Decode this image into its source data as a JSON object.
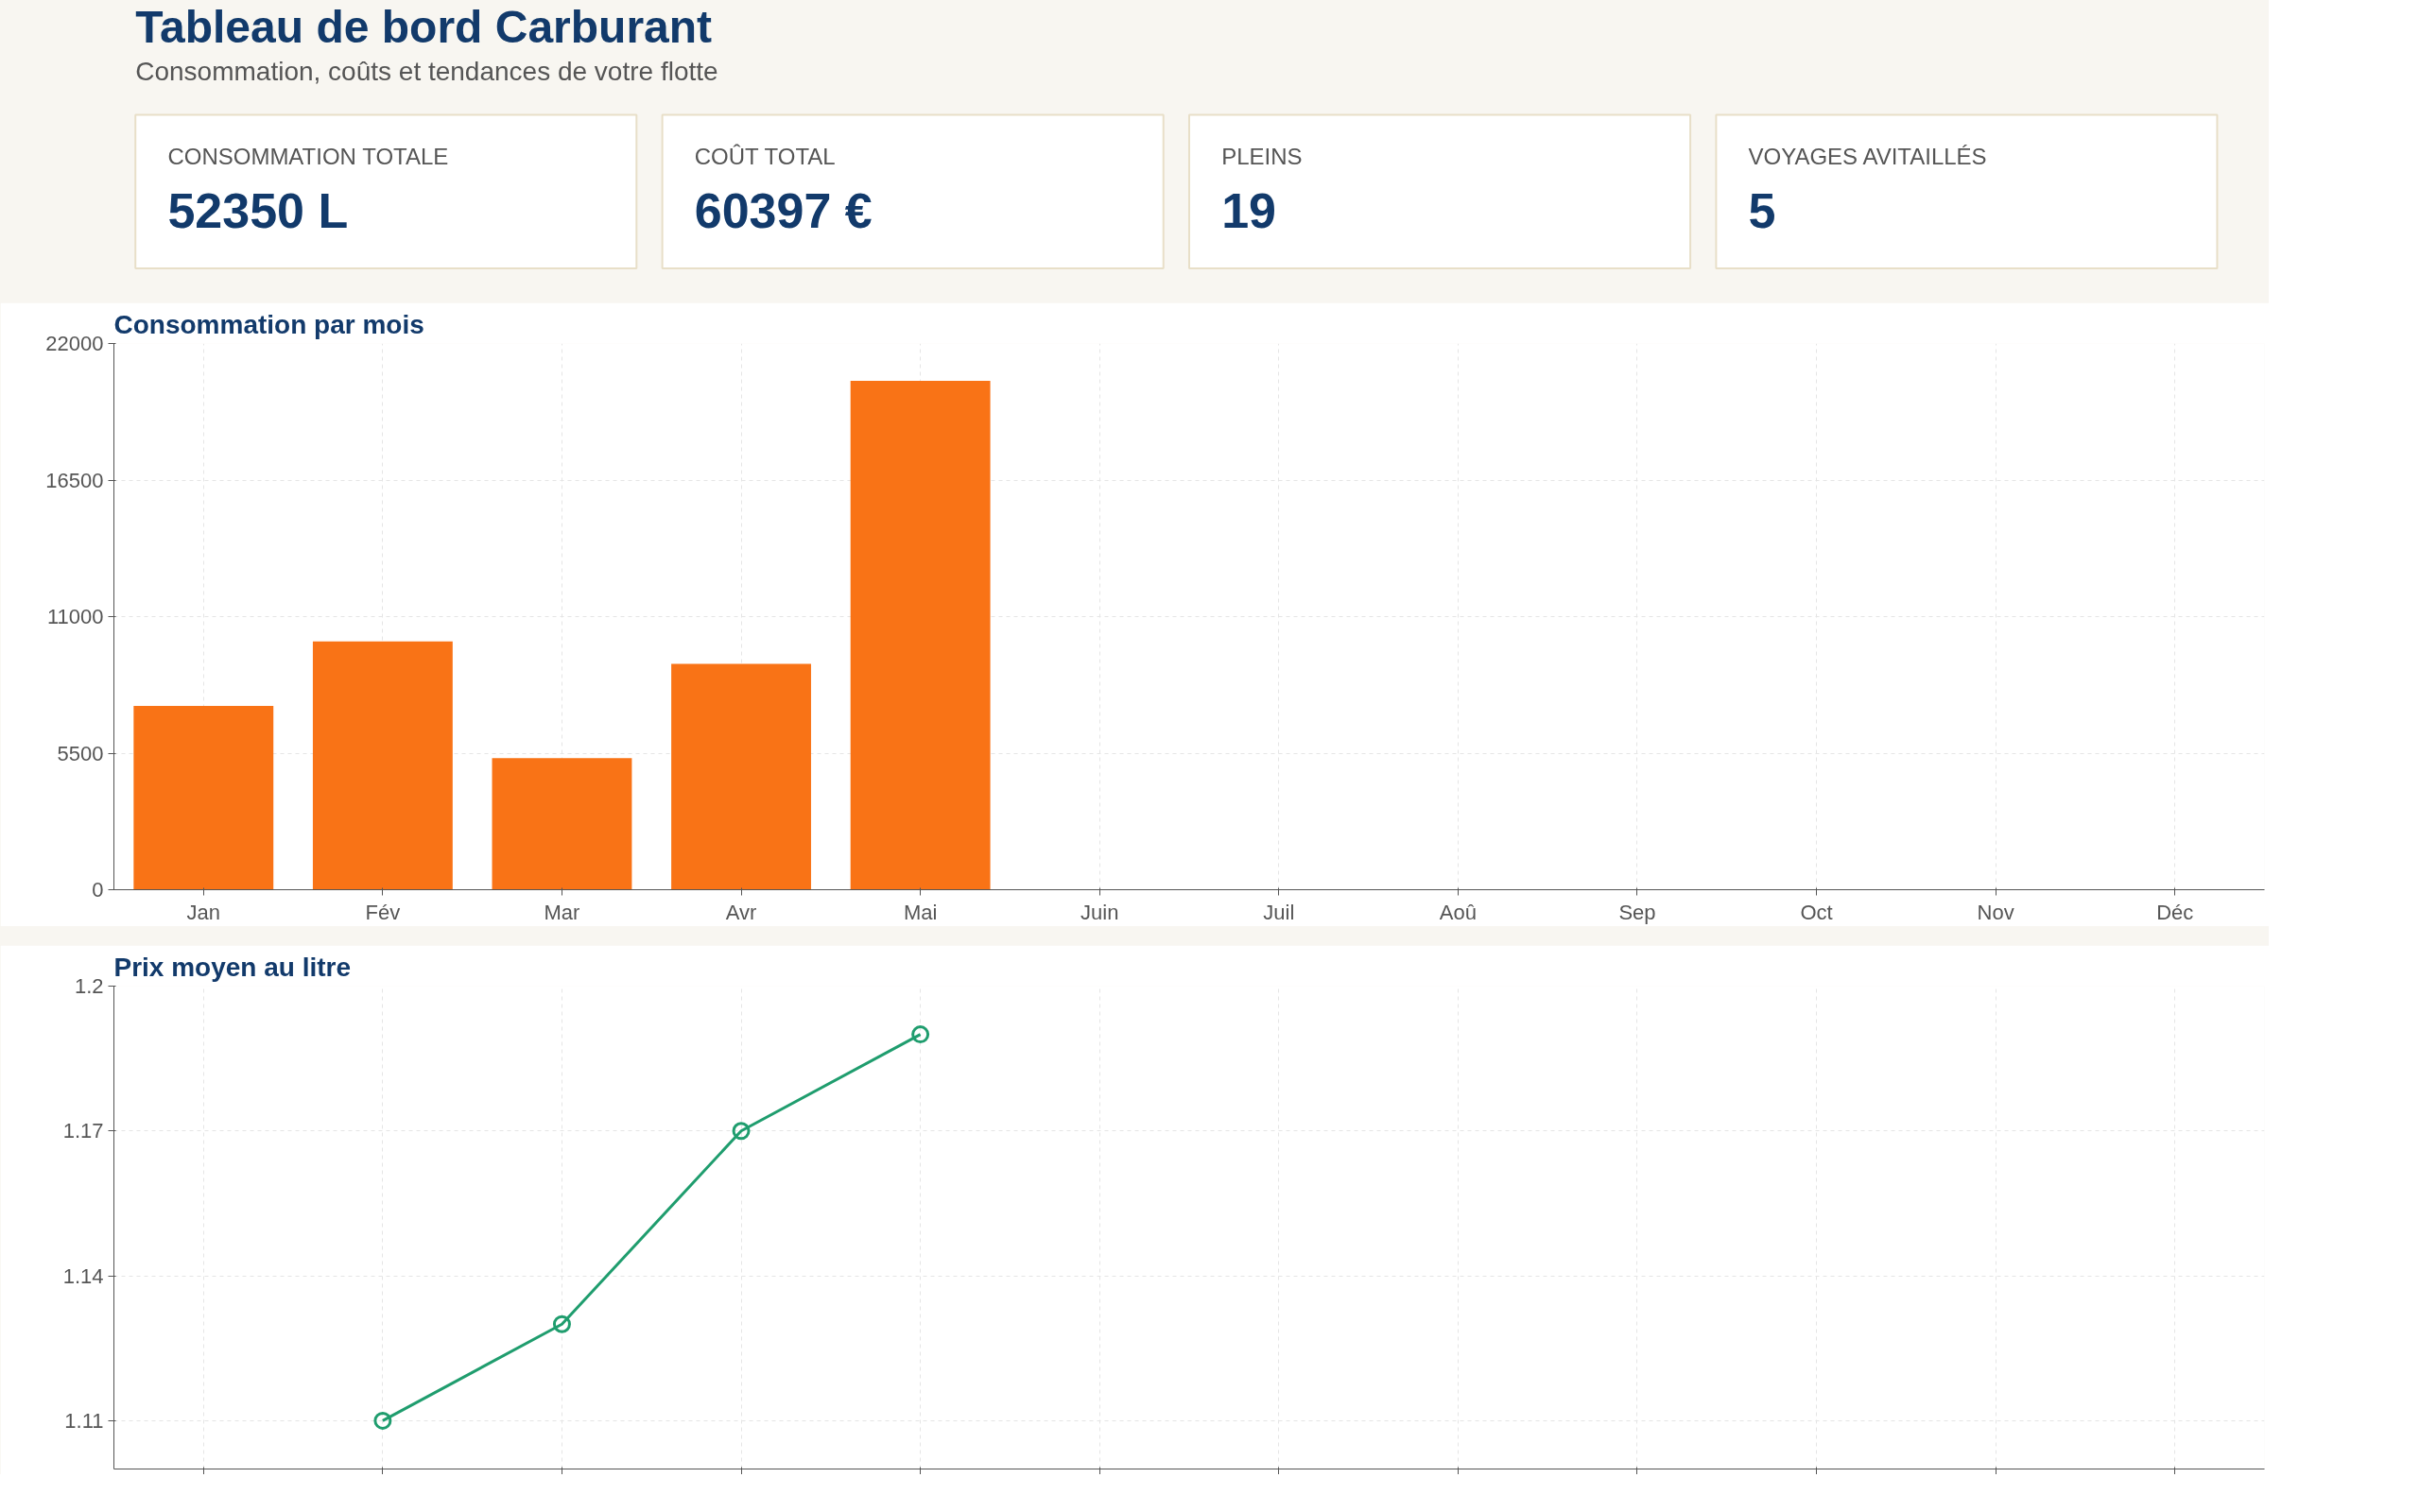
{
  "chart_data": [
    {
      "type": "other",
      "title": "Tableau de bord Carburant",
      "subtitle": "Consommation, coûts et tendances de votre flotte",
      "annotations": [
        "CONSOMMATION TOTALE",
        "52350 L",
        "COÛT TOTAL",
        "60397 €",
        "PLEINS",
        "19",
        "VOYAGES AVITAILLÉS",
        "5"
      ]
    },
    {
      "type": "bar",
      "title": "Consommation par mois",
      "categories": [
        "Jan",
        "Fév",
        "Mar",
        "Avr",
        "Mai",
        "Juin",
        "Juil",
        "Aoû",
        "Sep",
        "Oct",
        "Nov",
        "Déc"
      ],
      "values": [
        7400,
        10000,
        5300,
        9100,
        20500,
        null,
        null,
        null,
        null,
        null,
        null,
        null
      ],
      "color": "#f97316",
      "ylim": [
        0,
        22000
      ],
      "yticks": [
        0,
        5500,
        11000,
        16500,
        22000
      ],
      "grid": true
    },
    {
      "type": "line",
      "title": "Prix moyen au litre",
      "categories": [
        null,
        null,
        null,
        null,
        null,
        null,
        null,
        null,
        null,
        null,
        null,
        null
      ],
      "values": [
        null,
        1.11,
        1.13,
        1.17,
        1.19,
        null,
        null,
        null,
        null,
        null,
        null,
        null
      ],
      "color": "#1f9d6e",
      "ylim": [
        1.1,
        1.2
      ],
      "yticks": [
        1.11,
        1.14,
        1.17,
        1.2
      ],
      "grid": true,
      "marker": "circle",
      "line_style": "solid",
      "tick_labels": "y"
    }
  ]
}
